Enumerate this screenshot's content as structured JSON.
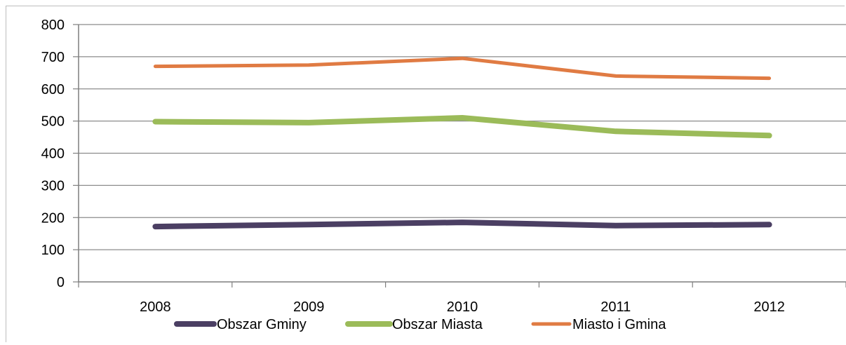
{
  "chart_data": {
    "type": "line",
    "categories": [
      "2008",
      "2009",
      "2010",
      "2011",
      "2012"
    ],
    "ylim": [
      0,
      800
    ],
    "yticks": [
      0,
      100,
      200,
      300,
      400,
      500,
      600,
      700,
      800
    ],
    "grid": true,
    "legend_position": "bottom",
    "series": [
      {
        "name": "Obszar Gminy",
        "color": "#4b3f63",
        "values": [
          172,
          178,
          185,
          175,
          178
        ]
      },
      {
        "name": "Obszar Miasta",
        "color": "#9bbb59",
        "values": [
          498,
          495,
          510,
          468,
          455
        ]
      },
      {
        "name": "Miasto i Gmina",
        "color": "#e07b43",
        "values": [
          670,
          674,
          695,
          640,
          633
        ]
      }
    ]
  }
}
